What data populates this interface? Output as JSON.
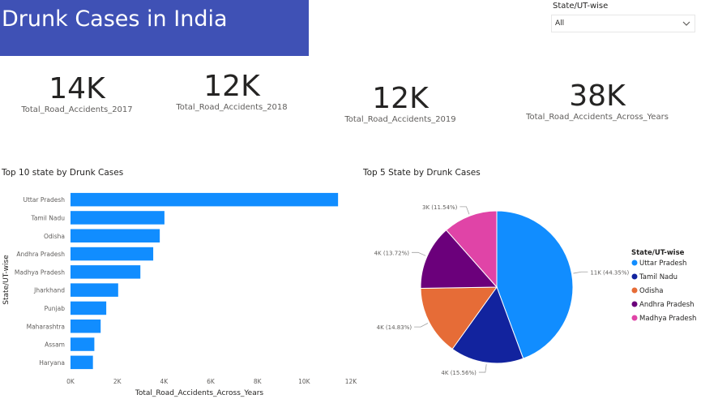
{
  "header": {
    "title": "Drunk Cases in India"
  },
  "slicer": {
    "label": "State/UT-wise",
    "value": "All",
    "icon": "chevron-down-icon"
  },
  "cards": [
    {
      "value": "14K",
      "label": "Total_Road_Accidents_2017"
    },
    {
      "value": "12K",
      "label": "Total_Road_Accidents_2018"
    },
    {
      "value": "12K",
      "label": "Total_Road_Accidents_2019"
    },
    {
      "value": "38K",
      "label": "Total_Road_Accidents_Across_Years"
    }
  ],
  "chart_data": [
    {
      "type": "bar",
      "orientation": "horizontal",
      "title": "Top 10 state by Drunk Cases",
      "xlabel": "Total_Road_Accidents_Across_Years",
      "ylabel": "State/UT-wise",
      "categories": [
        "Uttar Pradesh",
        "Tamil Nadu",
        "Odisha",
        "Andhra Pradesh",
        "Madhya Pradesh",
        "Jharkhand",
        "Punjab",
        "Maharashtra",
        "Assam",
        "Haryana"
      ],
      "values": [
        11450,
        4020,
        3820,
        3540,
        2990,
        2040,
        1530,
        1290,
        1020,
        960
      ],
      "xlim": [
        0,
        12000
      ],
      "xticks": [
        0,
        2000,
        4000,
        6000,
        8000,
        10000,
        12000
      ],
      "xtick_labels": [
        "0K",
        "2K",
        "4K",
        "6K",
        "8K",
        "10K",
        "12K"
      ],
      "color": "#118dff",
      "grid": false
    },
    {
      "type": "pie",
      "title": "Top 5 State by Drunk Cases",
      "legend_title": "State/UT-wise",
      "legend_position": "right",
      "slices": [
        {
          "name": "Uttar Pradesh",
          "value": 44.35,
          "label": "11K (44.35%)",
          "color": "#118dff"
        },
        {
          "name": "Tamil Nadu",
          "value": 15.56,
          "label": "4K (15.56%)",
          "color": "#12239e"
        },
        {
          "name": "Odisha",
          "value": 14.83,
          "label": "4K (14.83%)",
          "color": "#e66c37"
        },
        {
          "name": "Andhra Pradesh",
          "value": 13.72,
          "label": "4K (13.72%)",
          "color": "#6b007b"
        },
        {
          "name": "Madhya Pradesh",
          "value": 11.54,
          "label": "3K (11.54%)",
          "color": "#e044a7"
        }
      ]
    }
  ]
}
